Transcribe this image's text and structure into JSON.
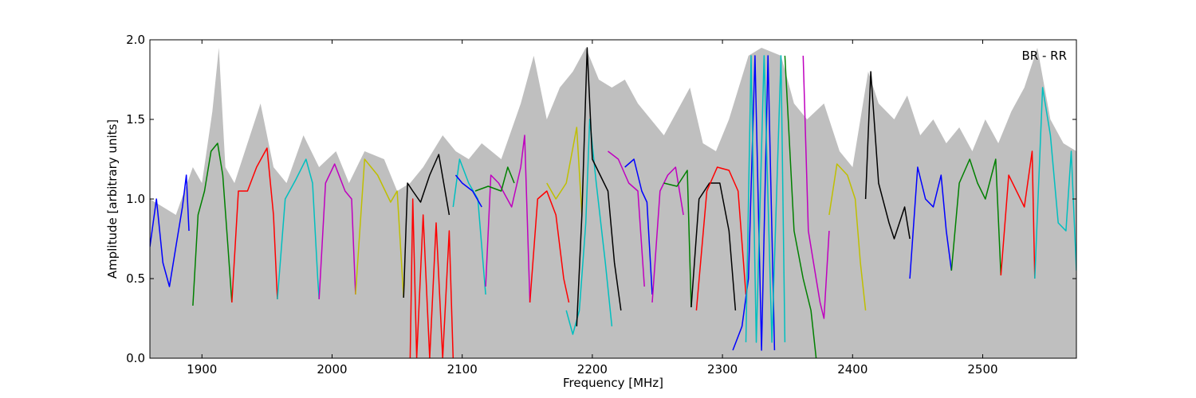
{
  "chart_data": {
    "type": "line",
    "title": "",
    "xlabel": "Frequency [MHz]",
    "ylabel": "Amplitude [arbitrary units]",
    "xlim": [
      1860,
      2572
    ],
    "ylim": [
      0,
      2
    ],
    "xticks": [
      1900,
      2000,
      2100,
      2200,
      2300,
      2400,
      2500
    ],
    "yticks": [
      0.0,
      0.5,
      1.0,
      1.5,
      2.0
    ],
    "xtick_labels": [
      "1900",
      "2000",
      "2100",
      "2200",
      "2300",
      "2400",
      "2500"
    ],
    "ytick_labels": [
      "0.0",
      "0.5",
      "1.0",
      "1.5",
      "2.0"
    ],
    "annotation": "BR - RR",
    "annotation_position": "top-right",
    "grid": false,
    "background_color": "#bfbfbf",
    "background_envelope": [
      [
        1860,
        1.0
      ],
      [
        1880,
        0.9
      ],
      [
        1893,
        1.2
      ],
      [
        1900,
        1.1
      ],
      [
        1908,
        1.55
      ],
      [
        1913,
        1.95
      ],
      [
        1918,
        1.2
      ],
      [
        1925,
        1.1
      ],
      [
        1935,
        1.35
      ],
      [
        1945,
        1.6
      ],
      [
        1955,
        1.2
      ],
      [
        1965,
        1.1
      ],
      [
        1978,
        1.4
      ],
      [
        1990,
        1.2
      ],
      [
        2003,
        1.3
      ],
      [
        2013,
        1.1
      ],
      [
        2025,
        1.3
      ],
      [
        2040,
        1.25
      ],
      [
        2050,
        1.05
      ],
      [
        2060,
        1.1
      ],
      [
        2070,
        1.2
      ],
      [
        2085,
        1.4
      ],
      [
        2095,
        1.3
      ],
      [
        2105,
        1.25
      ],
      [
        2115,
        1.35
      ],
      [
        2130,
        1.25
      ],
      [
        2145,
        1.6
      ],
      [
        2155,
        1.9
      ],
      [
        2165,
        1.5
      ],
      [
        2175,
        1.7
      ],
      [
        2185,
        1.8
      ],
      [
        2195,
        1.95
      ],
      [
        2205,
        1.75
      ],
      [
        2215,
        1.7
      ],
      [
        2225,
        1.75
      ],
      [
        2235,
        1.6
      ],
      [
        2245,
        1.5
      ],
      [
        2255,
        1.4
      ],
      [
        2265,
        1.55
      ],
      [
        2275,
        1.7
      ],
      [
        2285,
        1.35
      ],
      [
        2295,
        1.3
      ],
      [
        2305,
        1.5
      ],
      [
        2320,
        1.9
      ],
      [
        2330,
        1.95
      ],
      [
        2345,
        1.9
      ],
      [
        2355,
        1.6
      ],
      [
        2365,
        1.5
      ],
      [
        2378,
        1.6
      ],
      [
        2390,
        1.3
      ],
      [
        2400,
        1.2
      ],
      [
        2412,
        1.8
      ],
      [
        2420,
        1.6
      ],
      [
        2432,
        1.5
      ],
      [
        2442,
        1.65
      ],
      [
        2452,
        1.4
      ],
      [
        2462,
        1.5
      ],
      [
        2472,
        1.35
      ],
      [
        2482,
        1.45
      ],
      [
        2492,
        1.3
      ],
      [
        2502,
        1.5
      ],
      [
        2512,
        1.35
      ],
      [
        2522,
        1.55
      ],
      [
        2532,
        1.7
      ],
      [
        2542,
        1.95
      ],
      [
        2552,
        1.5
      ],
      [
        2562,
        1.35
      ],
      [
        2572,
        1.3
      ]
    ],
    "series": [
      {
        "color": "#0000ff",
        "points": [
          [
            1860,
            0.7
          ],
          [
            1865,
            1.0
          ],
          [
            1870,
            0.6
          ],
          [
            1875,
            0.45
          ],
          [
            1880,
            0.7
          ],
          [
            1885,
            0.95
          ],
          [
            1888,
            1.15
          ],
          [
            1890,
            0.8
          ]
        ]
      },
      {
        "color": "#008000",
        "points": [
          [
            1893,
            0.33
          ],
          [
            1897,
            0.9
          ],
          [
            1902,
            1.05
          ],
          [
            1907,
            1.3
          ],
          [
            1912,
            1.35
          ],
          [
            1916,
            1.15
          ],
          [
            1920,
            0.7
          ],
          [
            1923,
            0.35
          ]
        ]
      },
      {
        "color": "#ff0000",
        "points": [
          [
            1923,
            0.35
          ],
          [
            1928,
            1.05
          ],
          [
            1935,
            1.05
          ],
          [
            1942,
            1.2
          ],
          [
            1950,
            1.32
          ],
          [
            1955,
            0.9
          ],
          [
            1958,
            0.37
          ]
        ]
      },
      {
        "color": "#00bfbf",
        "points": [
          [
            1958,
            0.37
          ],
          [
            1964,
            1.0
          ],
          [
            1972,
            1.12
          ],
          [
            1980,
            1.25
          ],
          [
            1985,
            1.1
          ],
          [
            1989,
            0.5
          ],
          [
            1990,
            0.37
          ]
        ]
      },
      {
        "color": "#bf00bf",
        "points": [
          [
            1990,
            0.37
          ],
          [
            1995,
            1.1
          ],
          [
            2002,
            1.22
          ],
          [
            2010,
            1.05
          ],
          [
            2015,
            1.0
          ],
          [
            2018,
            0.4
          ]
        ]
      },
      {
        "color": "#bfbf00",
        "points": [
          [
            2018,
            0.4
          ],
          [
            2025,
            1.25
          ],
          [
            2035,
            1.15
          ],
          [
            2045,
            0.98
          ],
          [
            2050,
            1.05
          ],
          [
            2055,
            0.38
          ]
        ]
      },
      {
        "color": "#000000",
        "points": [
          [
            2055,
            0.38
          ],
          [
            2058,
            1.1
          ],
          [
            2062,
            1.05
          ],
          [
            2068,
            0.98
          ],
          [
            2075,
            1.15
          ],
          [
            2082,
            1.28
          ],
          [
            2090,
            0.9
          ]
        ]
      },
      {
        "color": "#ff0000",
        "points": [
          [
            2060,
            0.0
          ],
          [
            2062,
            1.0
          ],
          [
            2065,
            0.0
          ],
          [
            2070,
            0.9
          ],
          [
            2075,
            0.0
          ],
          [
            2080,
            0.85
          ],
          [
            2085,
            0.0
          ],
          [
            2090,
            0.8
          ],
          [
            2093,
            0.0
          ]
        ]
      },
      {
        "color": "#00bfbf",
        "points": [
          [
            2093,
            0.95
          ],
          [
            2098,
            1.25
          ],
          [
            2105,
            1.1
          ],
          [
            2112,
            1.0
          ],
          [
            2118,
            0.4
          ]
        ]
      },
      {
        "color": "#0000ff",
        "points": [
          [
            2095,
            1.15
          ],
          [
            2100,
            1.1
          ],
          [
            2108,
            1.05
          ],
          [
            2115,
            0.95
          ]
        ]
      },
      {
        "color": "#bf00bf",
        "points": [
          [
            2118,
            0.45
          ],
          [
            2122,
            1.15
          ],
          [
            2128,
            1.1
          ],
          [
            2138,
            0.95
          ],
          [
            2145,
            1.2
          ],
          [
            2148,
            1.4
          ],
          [
            2152,
            0.35
          ]
        ]
      },
      {
        "color": "#008000",
        "points": [
          [
            2110,
            1.05
          ],
          [
            2120,
            1.08
          ],
          [
            2130,
            1.05
          ],
          [
            2135,
            1.2
          ],
          [
            2140,
            1.1
          ]
        ]
      },
      {
        "color": "#ff0000",
        "points": [
          [
            2152,
            0.35
          ],
          [
            2158,
            1.0
          ],
          [
            2165,
            1.05
          ],
          [
            2172,
            0.9
          ],
          [
            2178,
            0.5
          ],
          [
            2182,
            0.35
          ]
        ]
      },
      {
        "color": "#bfbf00",
        "points": [
          [
            2165,
            1.1
          ],
          [
            2172,
            1.0
          ],
          [
            2180,
            1.1
          ],
          [
            2188,
            1.45
          ],
          [
            2192,
            0.9
          ]
        ]
      },
      {
        "color": "#00bfbf",
        "points": [
          [
            2180,
            0.3
          ],
          [
            2185,
            0.15
          ],
          [
            2190,
            0.3
          ],
          [
            2195,
            0.85
          ],
          [
            2198,
            1.5
          ],
          [
            2203,
            1.1
          ],
          [
            2210,
            0.6
          ],
          [
            2215,
            0.2
          ]
        ]
      },
      {
        "color": "#000000",
        "points": [
          [
            2188,
            0.2
          ],
          [
            2192,
            0.9
          ],
          [
            2196,
            1.95
          ],
          [
            2200,
            1.25
          ],
          [
            2206,
            1.15
          ],
          [
            2212,
            1.05
          ],
          [
            2217,
            0.6
          ],
          [
            2222,
            0.3
          ]
        ]
      },
      {
        "color": "#bf00bf",
        "points": [
          [
            2212,
            1.3
          ],
          [
            2220,
            1.25
          ],
          [
            2228,
            1.1
          ],
          [
            2235,
            1.05
          ],
          [
            2240,
            0.45
          ]
        ]
      },
      {
        "color": "#0000ff",
        "points": [
          [
            2225,
            1.2
          ],
          [
            2232,
            1.25
          ],
          [
            2238,
            1.05
          ],
          [
            2242,
            0.98
          ],
          [
            2246,
            0.4
          ]
        ]
      },
      {
        "color": "#bf00bf",
        "points": [
          [
            2246,
            0.35
          ],
          [
            2252,
            1.05
          ],
          [
            2258,
            1.15
          ],
          [
            2264,
            1.2
          ],
          [
            2270,
            0.9
          ]
        ]
      },
      {
        "color": "#008000",
        "points": [
          [
            2255,
            1.1
          ],
          [
            2265,
            1.08
          ],
          [
            2273,
            1.18
          ],
          [
            2276,
            0.32
          ]
        ]
      },
      {
        "color": "#000000",
        "points": [
          [
            2276,
            0.32
          ],
          [
            2282,
            1.0
          ],
          [
            2290,
            1.1
          ],
          [
            2298,
            1.1
          ],
          [
            2305,
            0.8
          ],
          [
            2310,
            0.3
          ]
        ]
      },
      {
        "color": "#ff0000",
        "points": [
          [
            2280,
            0.3
          ],
          [
            2288,
            1.05
          ],
          [
            2296,
            1.2
          ],
          [
            2305,
            1.18
          ],
          [
            2312,
            1.05
          ],
          [
            2318,
            0.4
          ]
        ]
      },
      {
        "color": "#0000ff",
        "points": [
          [
            2308,
            0.05
          ],
          [
            2315,
            0.2
          ],
          [
            2320,
            0.5
          ],
          [
            2325,
            1.9
          ],
          [
            2330,
            0.05
          ],
          [
            2335,
            1.9
          ],
          [
            2340,
            0.05
          ]
        ]
      },
      {
        "color": "#00bfbf",
        "points": [
          [
            2318,
            0.1
          ],
          [
            2322,
            1.9
          ],
          [
            2326,
            0.1
          ],
          [
            2332,
            1.9
          ],
          [
            2338,
            0.1
          ],
          [
            2345,
            1.9
          ],
          [
            2348,
            0.1
          ]
        ]
      },
      {
        "color": "#008000",
        "points": [
          [
            2348,
            1.9
          ],
          [
            2355,
            0.8
          ],
          [
            2362,
            0.5
          ],
          [
            2368,
            0.3
          ],
          [
            2372,
            0.0
          ]
        ]
      },
      {
        "color": "#bf00bf",
        "points": [
          [
            2362,
            1.9
          ],
          [
            2366,
            0.8
          ],
          [
            2370,
            0.6
          ],
          [
            2375,
            0.35
          ],
          [
            2378,
            0.25
          ],
          [
            2382,
            0.8
          ]
        ]
      },
      {
        "color": "#bfbf00",
        "points": [
          [
            2382,
            0.9
          ],
          [
            2388,
            1.22
          ],
          [
            2396,
            1.15
          ],
          [
            2402,
            1.0
          ],
          [
            2406,
            0.6
          ],
          [
            2410,
            0.3
          ]
        ]
      },
      {
        "color": "#000000",
        "points": [
          [
            2410,
            1.0
          ],
          [
            2414,
            1.8
          ],
          [
            2420,
            1.1
          ],
          [
            2428,
            0.85
          ],
          [
            2432,
            0.75
          ],
          [
            2440,
            0.95
          ],
          [
            2444,
            0.75
          ]
        ]
      },
      {
        "color": "#0000ff",
        "points": [
          [
            2444,
            0.5
          ],
          [
            2450,
            1.2
          ],
          [
            2456,
            1.0
          ],
          [
            2462,
            0.95
          ],
          [
            2468,
            1.15
          ],
          [
            2472,
            0.8
          ],
          [
            2476,
            0.55
          ]
        ]
      },
      {
        "color": "#008000",
        "points": [
          [
            2476,
            0.55
          ],
          [
            2482,
            1.1
          ],
          [
            2490,
            1.25
          ],
          [
            2496,
            1.1
          ],
          [
            2502,
            1.0
          ],
          [
            2510,
            1.25
          ],
          [
            2514,
            0.52
          ]
        ]
      },
      {
        "color": "#ff0000",
        "points": [
          [
            2514,
            0.52
          ],
          [
            2520,
            1.15
          ],
          [
            2526,
            1.05
          ],
          [
            2532,
            0.95
          ],
          [
            2538,
            1.3
          ],
          [
            2540,
            0.5
          ]
        ]
      },
      {
        "color": "#00bfbf",
        "points": [
          [
            2540,
            0.5
          ],
          [
            2546,
            1.7
          ],
          [
            2552,
            1.4
          ],
          [
            2558,
            0.85
          ],
          [
            2564,
            0.8
          ],
          [
            2568,
            1.3
          ],
          [
            2572,
            0.55
          ]
        ]
      }
    ]
  }
}
